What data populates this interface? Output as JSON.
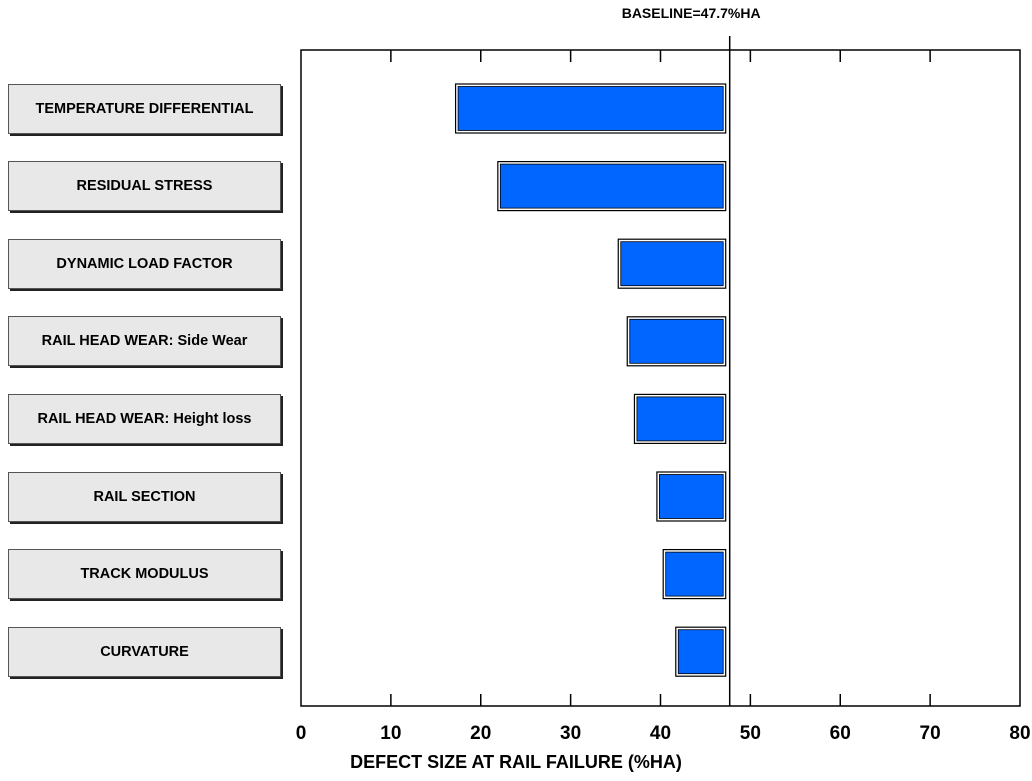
{
  "chart_data": {
    "type": "bar",
    "orientation": "horizontal",
    "chart_style": "tornado",
    "baseline": 47.7,
    "baseline_label": "BASELINE=47.7%HA",
    "categories": [
      "TEMPERATURE DIFFERENTIAL",
      "RESIDUAL STRESS",
      "DYNAMIC LOAD FACTOR",
      "RAIL HEAD WEAR: Side Wear",
      "RAIL HEAD WEAR: Height loss",
      "RAIL SECTION",
      "TRACK MODULUS",
      "CURVATURE"
    ],
    "values": [
      17.2,
      21.9,
      35.3,
      36.3,
      37.1,
      39.6,
      40.3,
      41.7
    ],
    "xlabel": "DEFECT SIZE AT RAIL FAILURE (%HA)",
    "ylabel": "",
    "xlim": [
      0,
      80
    ],
    "xticks": [
      0,
      10,
      20,
      30,
      40,
      50,
      60,
      70,
      80
    ],
    "bar_color": "#0066ff",
    "grid": false
  }
}
